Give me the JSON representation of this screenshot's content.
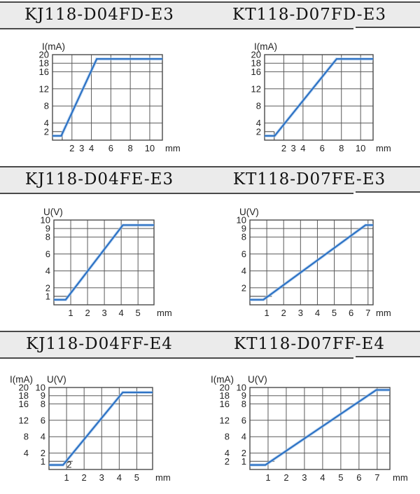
{
  "colors": {
    "header_bg": "#ebebeb",
    "header_border": "#4a4a4a",
    "grid": "#5a5a5a",
    "axis": "#4a4a4a",
    "curve": "#2e73c5",
    "curve_halo": "#a9cbec",
    "text": "#222222",
    "title": "#111111"
  },
  "chart_data": [
    {
      "type": "line",
      "title": "KJ118-D04FD-E3",
      "y_label": "I(mA)",
      "x_unit": "mm",
      "x_max": 11.3,
      "y_max": 20,
      "x_gridlines": [
        2,
        4,
        6,
        8,
        10
      ],
      "x_ticks": [
        [
          2,
          "2"
        ],
        [
          3,
          "3"
        ],
        [
          4,
          "4"
        ],
        [
          6,
          "6"
        ],
        [
          8,
          "8"
        ],
        [
          10,
          "10"
        ]
      ],
      "y_gridlines": [
        4,
        8,
        12,
        16,
        18,
        20
      ],
      "y_ticks": [
        [
          20,
          "20"
        ],
        [
          18,
          "18"
        ],
        [
          16,
          "16"
        ],
        [
          12,
          "12"
        ],
        [
          8,
          "8"
        ],
        [
          4,
          "4"
        ],
        [
          2,
          "2"
        ]
      ],
      "short_line": {
        "y": 2,
        "x_end": 1
      },
      "notch": {
        "x": 1,
        "y_end": 2
      },
      "curve": [
        [
          0,
          1
        ],
        [
          0.9,
          1
        ],
        [
          4.55,
          19
        ],
        [
          11.3,
          19
        ]
      ]
    },
    {
      "type": "line",
      "title": "KT118-D07FD-E3",
      "y_label": "I(mA)",
      "x_unit": "mm",
      "x_max": 11.3,
      "y_max": 20,
      "x_gridlines": [
        2,
        4,
        6,
        8,
        10
      ],
      "x_ticks": [
        [
          2,
          "2"
        ],
        [
          3,
          "3"
        ],
        [
          4,
          "4"
        ],
        [
          6,
          "6"
        ],
        [
          8,
          "8"
        ],
        [
          10,
          "10"
        ]
      ],
      "y_gridlines": [
        4,
        8,
        12,
        16,
        18,
        20
      ],
      "y_ticks": [
        [
          20,
          "20"
        ],
        [
          18,
          "18"
        ],
        [
          16,
          "16"
        ],
        [
          12,
          "12"
        ],
        [
          8,
          "8"
        ],
        [
          4,
          "4"
        ],
        [
          2,
          "2"
        ]
      ],
      "short_line": {
        "y": 2,
        "x_end": 1
      },
      "notch": {
        "x": 1,
        "y_end": 2
      },
      "curve": [
        [
          0,
          1
        ],
        [
          1.05,
          1
        ],
        [
          7.5,
          19
        ],
        [
          11.3,
          19
        ]
      ]
    },
    {
      "type": "line",
      "title": "KJ118-D04FE-E3",
      "y_label": "U(V)",
      "x_unit": "mm",
      "x_max": 5.95,
      "y_max": 10,
      "x_gridlines": [
        1,
        2,
        3,
        4,
        5
      ],
      "x_ticks": [
        [
          1,
          "1"
        ],
        [
          2,
          "2"
        ],
        [
          3,
          "3"
        ],
        [
          4,
          "4"
        ],
        [
          5,
          "5"
        ]
      ],
      "y_gridlines": [
        2,
        4,
        6,
        8,
        9,
        10
      ],
      "y_ticks": [
        [
          10,
          "10"
        ],
        [
          9,
          "9"
        ],
        [
          8,
          "8"
        ],
        [
          6,
          "6"
        ],
        [
          4,
          "4"
        ],
        [
          2,
          "2"
        ],
        [
          1,
          "1"
        ]
      ],
      "short_line": {
        "y": 1,
        "x_end": 0.85
      },
      "curve": [
        [
          0,
          0.6
        ],
        [
          0.7,
          0.6
        ],
        [
          4.1,
          9.4
        ],
        [
          5.95,
          9.4
        ]
      ]
    },
    {
      "type": "line",
      "title": "KT118-D07FE-E3",
      "y_label": "U(V)",
      "x_unit": "mm",
      "x_max": 7.3,
      "y_max": 10,
      "x_gridlines": [
        1,
        2,
        3,
        4,
        5,
        6,
        7
      ],
      "x_ticks": [
        [
          1,
          "1"
        ],
        [
          2,
          "2"
        ],
        [
          3,
          "3"
        ],
        [
          4,
          "4"
        ],
        [
          5,
          "5"
        ],
        [
          6,
          "6"
        ],
        [
          7,
          "7"
        ]
      ],
      "y_gridlines": [
        2,
        4,
        6,
        8,
        9,
        10
      ],
      "y_ticks": [
        [
          10,
          "10"
        ],
        [
          9,
          "9"
        ],
        [
          8,
          "8"
        ],
        [
          6,
          "6"
        ],
        [
          4,
          "4"
        ],
        [
          2,
          "2"
        ]
      ],
      "short_line": {
        "y": 1,
        "x_end": 1.3
      },
      "curve": [
        [
          0,
          0.6
        ],
        [
          0.8,
          0.6
        ],
        [
          6.85,
          9.4
        ],
        [
          7.3,
          9.4
        ]
      ]
    },
    {
      "type": "line",
      "title": "KJ118-D04FF-E4",
      "y_label": "U(V)",
      "y_label2": "I(mA)",
      "x_unit": "mm",
      "x_max": 5.9,
      "y_max": 10,
      "x_gridlines": [
        1,
        2,
        3,
        4,
        5
      ],
      "x_ticks": [
        [
          1,
          "1"
        ],
        [
          2,
          "2"
        ],
        [
          3,
          "3"
        ],
        [
          4,
          "4"
        ],
        [
          5,
          "5"
        ]
      ],
      "y_gridlines": [
        2,
        4,
        6,
        8,
        9,
        10
      ],
      "y_ticks": [
        [
          10,
          "10"
        ],
        [
          9,
          "9"
        ],
        [
          8,
          "8"
        ],
        [
          6,
          "6"
        ],
        [
          4,
          "4"
        ],
        [
          2,
          "2"
        ],
        [
          1,
          "1"
        ]
      ],
      "y_ticks2": [
        [
          10,
          "20"
        ],
        [
          9,
          "18"
        ],
        [
          8,
          "16"
        ],
        [
          6,
          "12"
        ],
        [
          4,
          "8"
        ],
        [
          2,
          "4"
        ]
      ],
      "short_line": {
        "y": 1,
        "x_end": 1.35
      },
      "stray_text": {
        "x": 1.15,
        "y": 0.55,
        "t": "2"
      },
      "curve": [
        [
          0,
          0.55
        ],
        [
          0.8,
          0.55
        ],
        [
          4.2,
          9.4
        ],
        [
          5.9,
          9.4
        ]
      ]
    },
    {
      "type": "line",
      "title": "KT118-D07FF-E4",
      "y_label": "U(V)",
      "y_label2": "I(mA)",
      "x_unit": "mm",
      "x_max": 7.7,
      "y_max": 10,
      "x_gridlines": [
        1,
        2,
        3,
        4,
        5,
        6,
        7
      ],
      "x_ticks": [
        [
          1,
          "1"
        ],
        [
          2,
          "2"
        ],
        [
          3,
          "3"
        ],
        [
          4,
          "4"
        ],
        [
          5,
          "5"
        ],
        [
          6,
          "6"
        ],
        [
          7,
          "7"
        ]
      ],
      "y_gridlines": [
        2,
        4,
        6,
        8,
        9,
        10
      ],
      "y_ticks": [
        [
          10,
          "10"
        ],
        [
          9,
          "9"
        ],
        [
          8,
          "8"
        ],
        [
          6,
          "6"
        ],
        [
          4,
          "4"
        ],
        [
          2,
          "2"
        ],
        [
          1,
          "1"
        ]
      ],
      "y_ticks2": [
        [
          10,
          "20"
        ],
        [
          9,
          "18"
        ],
        [
          8,
          "16"
        ],
        [
          6,
          "12"
        ],
        [
          4,
          "8"
        ],
        [
          2,
          "4"
        ],
        [
          1,
          "2"
        ]
      ],
      "short_line": {
        "y": 1,
        "x_end": 1.35
      },
      "curve": [
        [
          0,
          0.55
        ],
        [
          0.85,
          0.55
        ],
        [
          6.95,
          9.7
        ],
        [
          7.7,
          9.7
        ]
      ]
    }
  ]
}
